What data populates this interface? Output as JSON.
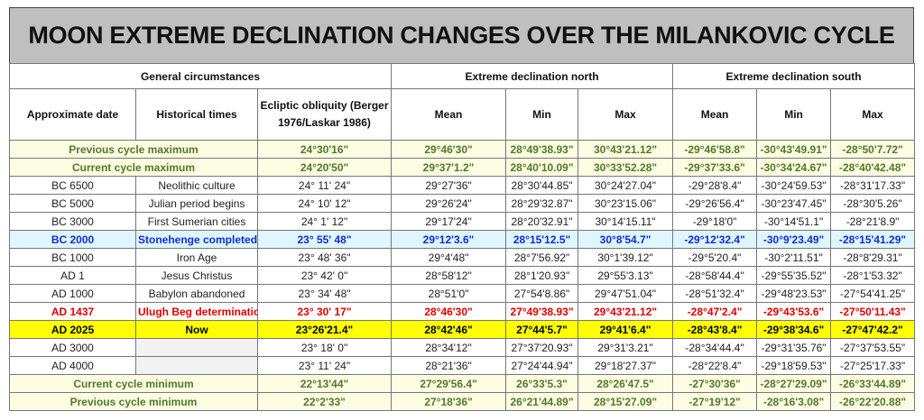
{
  "title": "MOON EXTREME DECLINATION CHANGES OVER THE MILANKOVIC CYCLE",
  "table": {
    "groups": [
      "General circumstances",
      "Extreme declination north",
      "Extreme declination south"
    ],
    "columns": [
      "Approximate date",
      "Historical times",
      "Ecliptic obliquity (Berger 1976/Laskar 1986)",
      "Mean",
      "Min",
      "Max",
      "Mean",
      "Min",
      "Max"
    ],
    "rows": [
      {
        "label": "Previous cycle maximum",
        "obliquity": "24°30'16\"",
        "north": [
          "29°46'30\"",
          "28°49'38.93\"",
          "30°43'21.12\""
        ],
        "south": [
          "-29°46'58.8\"",
          "-30°43'49.91\"",
          "-28°50'7.72\""
        ],
        "color": "#4f7a28",
        "background": "#fdfde3",
        "bold": true
      },
      {
        "label": "Current cycle maximum",
        "obliquity": "24°20'50\"",
        "north": [
          "29°37'1.2\"",
          "28°40'10.09\"",
          "30°33'52.28\""
        ],
        "south": [
          "-29°37'33.6\"",
          "-30°34'24.67\"",
          "-28°40'42.48\""
        ],
        "color": "#4f7a28",
        "background": "#fdfde3",
        "bold": true
      },
      {
        "date": "BC 6500",
        "event": "Neolithic culture",
        "obliquity": "24° 11' 24\"",
        "north": [
          "29°27'36\"",
          "28°30'44.85\"",
          "30°24'27.04\""
        ],
        "south": [
          "-29°28'8.4\"",
          "-30°24'59.53\"",
          "-28°31'17.33\""
        ]
      },
      {
        "date": "BC 5000",
        "event": "Julian period begins",
        "obliquity": "24° 10' 12\"",
        "north": [
          "29°26'24\"",
          "28°29'32.87\"",
          "30°23'15.06\""
        ],
        "south": [
          "-29°26'56.4\"",
          "-30°23'47.45\"",
          "-28°30'5.26\""
        ]
      },
      {
        "date": "BC 3000",
        "event": "First Sumerian cities",
        "obliquity": "24° 1' 12\"",
        "north": [
          "29°17'24\"",
          "28°20'32.91\"",
          "30°14'15.11\""
        ],
        "south": [
          "-29°18'0\"",
          "-30°14'51.1\"",
          "-28°21'8.9\""
        ]
      },
      {
        "date": "BC 2000",
        "event": "Stonehenge completed",
        "obliquity": "23° 55' 48\"",
        "north": [
          "29°12'3.6\"",
          "28°15'12.5\"",
          "30°8'54.7\""
        ],
        "south": [
          "-29°12'32.4\"",
          "-30°9'23.49\"",
          "-28°15'41.29\""
        ],
        "color": "#0a2fd6",
        "background": "#dff6ff",
        "bold": true
      },
      {
        "date": "BC 1000",
        "event": "Iron Age",
        "obliquity": "23° 48' 36\"",
        "north": [
          "29°4'48\"",
          "28°7'56.92\"",
          "30°1'39.12\""
        ],
        "south": [
          "-29°5'20.4\"",
          "-30°2'11.51\"",
          "-28°8'29.31\""
        ]
      },
      {
        "date": "AD 1",
        "event": "Jesus Christus",
        "obliquity": "23° 42' 0\"",
        "north": [
          "28°58'12\"",
          "28°1'20.93\"",
          "29°55'3.13\""
        ],
        "south": [
          "-28°58'44.4\"",
          "-29°55'35.52\"",
          "-28°1'53.32\""
        ]
      },
      {
        "date": "AD 1000",
        "event": "Babylon abandoned",
        "obliquity": "23° 34' 48\"",
        "north": [
          "28°51'0\"",
          "27°54'8.86\"",
          "29°47'51.04\""
        ],
        "south": [
          "-28°51'32.4\"",
          "-29°48'23.53\"",
          "-27°54'41.25\""
        ]
      },
      {
        "date": "AD 1437",
        "event": "Ulugh Beg determination",
        "obliquity": "23° 30' 17\"",
        "north": [
          "28°46'30\"",
          "27°49'38.93\"",
          "29°43'21.12\""
        ],
        "south": [
          "-28°47'2.4\"",
          "-29°43'53.6\"",
          "-27°50'11.43\""
        ],
        "color": "#e00000",
        "bold": true
      },
      {
        "date": "AD 2025",
        "event": "Now",
        "obliquity": "23°26'21.4\"",
        "north": [
          "28°42'46\"",
          "27°44'5.7\"",
          "29°41'6.4\""
        ],
        "south": [
          "-28°43'8.4\"",
          "-29°38'34.6\"",
          "-27°47'42.2\""
        ],
        "color": "#000000",
        "background": "#ffff00",
        "bold": true
      },
      {
        "date": "AD 3000",
        "obliquity": "23° 18' 0\"",
        "north": [
          "28°34'12\"",
          "27°37'20.93\"",
          "29°31'3.21\""
        ],
        "south": [
          "-28°34'44.4\"",
          "-29°31'35.76\"",
          "-27°37'53.55\""
        ]
      },
      {
        "date": "AD 4000",
        "obliquity": "23° 11' 24\"",
        "north": [
          "28°21'36\"",
          "27°24'44.94\"",
          "29°18'27.37\""
        ],
        "south": [
          "-28°22'8.4\"",
          "-29°18'59.53\"",
          "-27°25'17.33\""
        ]
      },
      {
        "label": "Current cycle minimum",
        "obliquity": "22°13'44\"",
        "north": [
          "27°29'56.4\"",
          "26°33'5.3\"",
          "28°26'47.5\""
        ],
        "south": [
          "-27°30'36\"",
          "-28°27'29.09\"",
          "-26°33'44.89\""
        ],
        "color": "#4f7a28",
        "background": "#fdfde3",
        "bold": true
      },
      {
        "label": "Previous cycle minimum",
        "obliquity": "22°2'33\"",
        "north": [
          "27°18'36\"",
          "26°21'44.89\"",
          "28°15'27.09\""
        ],
        "south": [
          "-27°19'12\"",
          "-28°16'3.08\"",
          "-26°22'20.88\""
        ],
        "color": "#4f7a28",
        "background": "#fdfde3",
        "bold": true
      }
    ]
  }
}
